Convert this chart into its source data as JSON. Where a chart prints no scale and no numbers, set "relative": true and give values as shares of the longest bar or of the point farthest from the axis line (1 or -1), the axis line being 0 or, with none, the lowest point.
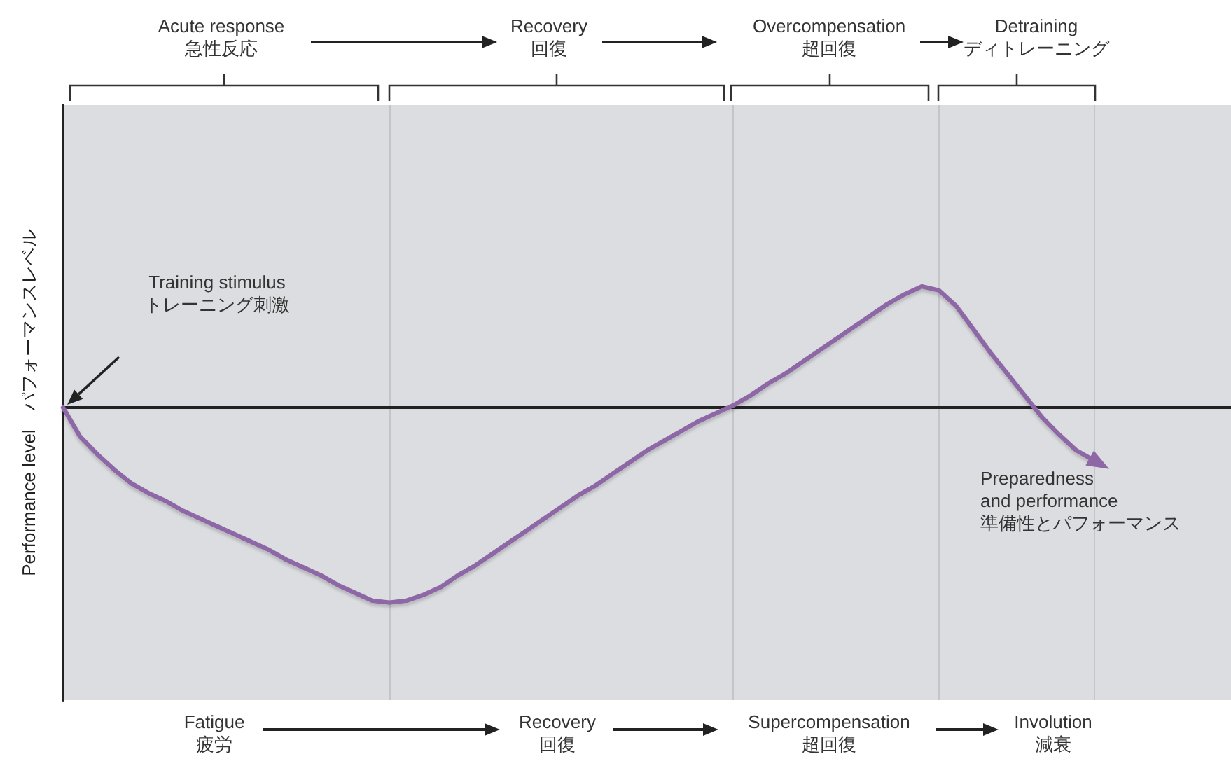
{
  "chart_data": {
    "type": "line",
    "relative": true,
    "ylabel": "Performance level　パフォーマンスレベル",
    "categories": [
      null,
      null,
      null,
      null,
      null,
      null,
      null,
      null,
      null,
      null,
      null,
      null,
      null,
      null,
      null,
      null,
      null,
      null,
      null,
      null,
      null,
      null,
      null,
      null,
      null,
      null,
      null,
      null,
      null,
      null,
      null,
      null,
      null,
      null,
      null,
      null,
      null,
      null,
      null,
      null,
      null,
      null,
      null,
      null,
      null,
      null,
      null,
      null,
      null,
      null,
      null,
      null,
      null,
      null,
      null,
      null,
      null,
      null,
      null,
      null,
      null,
      null,
      null,
      null,
      null,
      null,
      null,
      null,
      null
    ],
    "series": [
      {
        "color": "#8e68a6",
        "values": [
          0,
          -0.15,
          -0.24,
          -0.32,
          -0.39,
          -0.44,
          -0.48,
          -0.53,
          -0.57,
          -0.61,
          -0.65,
          -0.69,
          -0.73,
          -0.78,
          -0.82,
          -0.86,
          -0.91,
          -0.95,
          -0.99,
          -1,
          -0.99,
          -0.96,
          -0.92,
          -0.86,
          -0.81,
          -0.75,
          -0.69,
          -0.63,
          -0.57,
          -0.51,
          -0.45,
          -0.4,
          -0.34,
          -0.28,
          -0.22,
          -0.17,
          -0.12,
          -0.07,
          -0.03,
          0.01,
          0.06,
          0.12,
          0.17,
          0.23,
          0.29,
          0.35,
          0.41,
          0.47,
          0.53,
          0.58,
          0.62,
          0.6,
          0.52,
          0.4,
          0.28,
          0.17,
          0.06,
          -0.05,
          -0.14,
          -0.22,
          -0.27,
          null,
          null,
          null,
          null,
          null,
          null,
          null,
          null
        ]
      }
    ],
    "annotations": [
      "Acute response\n急性反応",
      "Recovery\n回復",
      "Overcompensation\n超回復",
      "Detraining\nディトレーニング",
      "Fatigue\n疲労",
      "Recovery\n回復",
      "Supercompensation\n超回復",
      "Involution\n減衰",
      "Training stimulus\nトレーニング刺激",
      "Preparedness\nand performance\n準備性とパフォーマンス"
    ],
    "marker": "none",
    "line_style": "solid",
    "grid": "x"
  }
}
